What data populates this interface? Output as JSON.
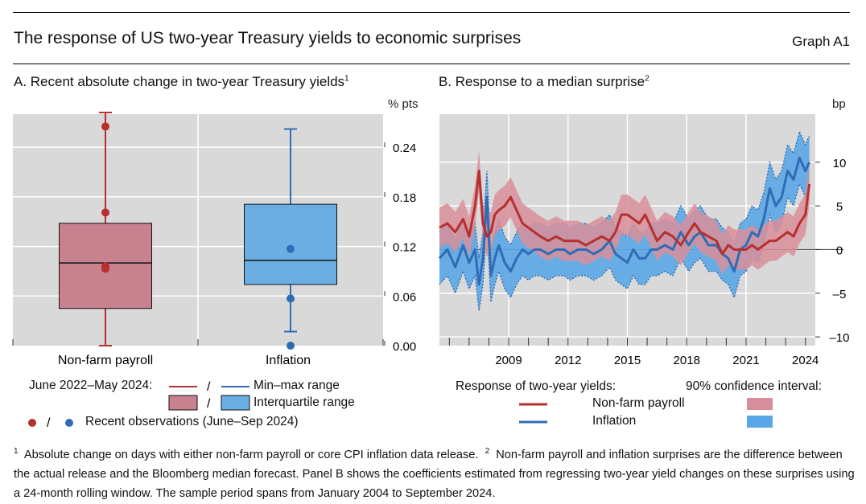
{
  "header": {
    "title": "The response of US two-year Treasury yields to economic surprises",
    "graph_id": "Graph A1"
  },
  "panel_a": {
    "title": "A. Recent absolute change in two-year Treasury yields",
    "title_sup": "1",
    "unit": "% pts",
    "legend": {
      "period": "June 2022–May 2024:",
      "slash": "/",
      "minmax": "Min–max range",
      "iqr": "Interquartile range",
      "obs": "Recent observations (June–Sep 2024)"
    }
  },
  "panel_b": {
    "title": "B. Response to a median surprise",
    "title_sup": "2",
    "unit": "bp",
    "legend": {
      "response_title": "Response of two-year yields:",
      "ci_title": "90% confidence interval:",
      "nfp": "Non-farm payroll",
      "inflation": "Inflation"
    }
  },
  "footnote": {
    "n1": "1",
    "t1": "Absolute change on days with either non-farm payroll or core CPI inflation data release.",
    "n2": "2",
    "t2": "Non-farm payroll and inflation surprises are the difference between the actual release and the Bloomberg median forecast. Panel B shows the coefficients estimated from regressing two-year yield changes on these surprises using a 24-month rolling window. The sample period spans from January 2004 to September 2024."
  },
  "colors": {
    "nfp": "#b5302f",
    "nfp_fill": "#c7818f",
    "nfp_band": "#d88e9a",
    "inflation": "#2f6cb5",
    "inflation_fill": "#6aaee3",
    "inflation_band": "#5aa6e6",
    "plot_bg": "#d9d9d9"
  },
  "chart_data": [
    {
      "type": "box",
      "title": "A. Recent absolute change in two-year Treasury yields",
      "ylabel": "% pts",
      "ylim": [
        0,
        0.28
      ],
      "yticks": [
        0.0,
        0.06,
        0.12,
        0.18,
        0.24
      ],
      "ytick_labels": [
        "0.00",
        "0.06",
        "0.12",
        "0.18",
        "0.24"
      ],
      "series": [
        {
          "name": "Non-farm payroll",
          "min": 0.0,
          "q1": 0.045,
          "median": 0.1,
          "q3": 0.148,
          "max": 0.282,
          "recent": [
            0.265,
            0.161,
            0.096,
            0.093
          ]
        },
        {
          "name": "Inflation",
          "min": 0.017,
          "q1": 0.074,
          "median": 0.103,
          "q3": 0.171,
          "max": 0.262,
          "recent": [
            0.117,
            0.057,
            0.0
          ]
        }
      ]
    },
    {
      "type": "line",
      "title": "B. Response to a median surprise",
      "ylabel": "bp",
      "ylim": [
        -11,
        15.5
      ],
      "xlim": [
        2006.0,
        2025.0
      ],
      "yticks": [
        -10,
        -5,
        0,
        5,
        10
      ],
      "ytick_labels": [
        "–10",
        "–5",
        "0",
        "5",
        "10"
      ],
      "xticks": [
        2009,
        2012,
        2015,
        2018,
        2021,
        2024
      ],
      "xtick_labels": [
        "2009",
        "2012",
        "2015",
        "2018",
        "2021",
        "2024"
      ],
      "series": [
        {
          "name": "Non-farm payroll",
          "band": 2.3,
          "x": [
            2006.0,
            2006.4,
            2006.8,
            2007.2,
            2007.5,
            2007.8,
            2008.0,
            2008.2,
            2008.4,
            2008.6,
            2008.8,
            2009.0,
            2009.3,
            2009.6,
            2009.9,
            2010.2,
            2010.5,
            2010.8,
            2011.1,
            2011.5,
            2011.9,
            2012.3,
            2012.6,
            2013.0,
            2013.4,
            2013.8,
            2014.2,
            2014.6,
            2014.9,
            2015.2,
            2015.5,
            2015.8,
            2016.1,
            2016.4,
            2016.7,
            2017.0,
            2017.4,
            2017.8,
            2018.2,
            2018.6,
            2018.9,
            2019.2,
            2019.6,
            2020.0,
            2020.3,
            2020.6,
            2020.9,
            2021.2,
            2021.5,
            2021.8,
            2022.1,
            2022.4,
            2022.7,
            2023.0,
            2023.3,
            2023.6,
            2023.9,
            2024.2,
            2024.5,
            2024.7
          ],
          "y": [
            2.5,
            3.0,
            2.0,
            3.5,
            1.5,
            5.0,
            9.0,
            3.0,
            1.5,
            2.0,
            4.0,
            4.5,
            5.0,
            6.0,
            4.5,
            3.0,
            2.5,
            2.0,
            1.5,
            1.0,
            1.5,
            1.0,
            1.0,
            1.0,
            0.5,
            1.0,
            1.5,
            1.0,
            2.0,
            4.0,
            4.0,
            3.5,
            3.0,
            4.0,
            2.5,
            1.0,
            2.0,
            1.5,
            0.5,
            2.0,
            3.0,
            2.0,
            1.5,
            1.0,
            -0.5,
            0.5,
            0.0,
            0.0,
            0.0,
            0.5,
            0.0,
            0.5,
            1.0,
            1.0,
            1.5,
            2.0,
            1.5,
            3.0,
            4.0,
            7.5
          ]
        },
        {
          "name": "Inflation",
          "band": 3.0,
          "x": [
            2006.0,
            2006.4,
            2006.8,
            2007.2,
            2007.5,
            2007.8,
            2008.0,
            2008.2,
            2008.4,
            2008.6,
            2008.8,
            2009.0,
            2009.3,
            2009.6,
            2009.9,
            2010.2,
            2010.5,
            2010.8,
            2011.1,
            2011.5,
            2011.9,
            2012.3,
            2012.6,
            2013.0,
            2013.4,
            2013.8,
            2014.2,
            2014.6,
            2014.9,
            2015.2,
            2015.5,
            2015.8,
            2016.1,
            2016.4,
            2016.7,
            2017.0,
            2017.4,
            2017.8,
            2018.2,
            2018.6,
            2018.9,
            2019.2,
            2019.6,
            2020.0,
            2020.3,
            2020.6,
            2020.9,
            2021.2,
            2021.5,
            2021.8,
            2022.1,
            2022.4,
            2022.7,
            2023.0,
            2023.3,
            2023.6,
            2023.9,
            2024.2,
            2024.5,
            2024.7
          ],
          "y": [
            -1.0,
            0.0,
            -2.0,
            0.5,
            -1.5,
            0.0,
            -4.0,
            -1.0,
            6.0,
            -3.0,
            -1.0,
            0.5,
            -1.5,
            -2.5,
            -1.0,
            0.0,
            -0.5,
            0.0,
            0.0,
            -0.5,
            0.0,
            0.0,
            -0.5,
            0.0,
            0.0,
            -0.5,
            0.0,
            1.0,
            -0.5,
            -1.0,
            -1.5,
            0.0,
            -1.0,
            -1.0,
            0.0,
            0.0,
            0.5,
            0.0,
            2.0,
            0.5,
            1.5,
            2.0,
            0.5,
            0.5,
            -0.5,
            -1.0,
            -2.5,
            0.0,
            0.5,
            2.0,
            1.5,
            3.5,
            7.0,
            5.0,
            6.0,
            9.0,
            8.0,
            10.5,
            9.0,
            10.0
          ]
        }
      ]
    }
  ]
}
